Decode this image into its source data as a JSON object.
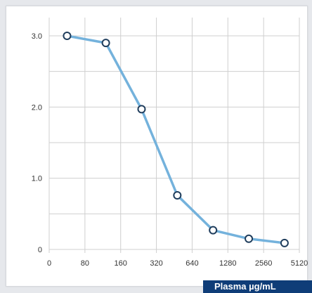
{
  "chart_data": {
    "type": "line",
    "title": "",
    "xlabel": "Plasma µg/mL",
    "ylabel": "",
    "x_ticks": [
      "0",
      "80",
      "160",
      "320",
      "640",
      "1280",
      "2560",
      "5120"
    ],
    "y_ticks": [
      "0",
      "1.0",
      "2.0",
      "3.0"
    ],
    "ylim": [
      0,
      3.0
    ],
    "grid": true,
    "series": [
      {
        "x": [
          40,
          120,
          240,
          480,
          960,
          1920,
          3840
        ],
        "values": [
          3.0,
          2.9,
          1.97,
          0.76,
          0.27,
          0.15,
          0.09
        ]
      }
    ],
    "colors": {
      "line": "#74b2dc",
      "marker_edge": "#1f3d5c",
      "marker_fill": "#ffffff",
      "grid": "#cfcfcf"
    }
  }
}
